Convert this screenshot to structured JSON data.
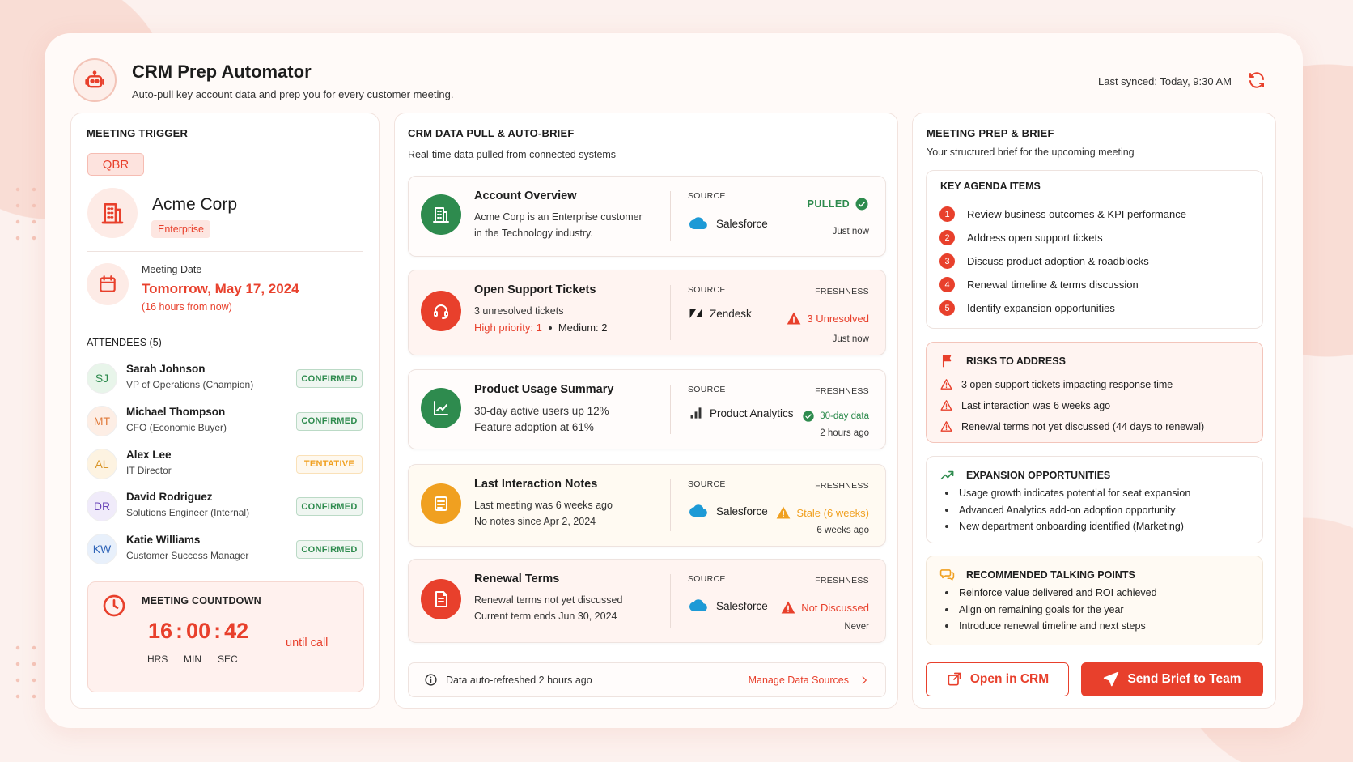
{
  "header": {
    "title": "CRM Prep Automator",
    "subtitle": "Auto-pull key account data and prep you for every customer meeting.",
    "last_synced": "Last synced: Today, 9:30 AM"
  },
  "trigger": {
    "heading": "MEETING TRIGGER",
    "badge": "QBR",
    "account": "Acme Corp",
    "tier": "Enterprise",
    "date_label": "Meeting Date",
    "date": "Tomorrow, May 17, 2024",
    "relative": "(16 hours from now)",
    "attendees_heading": "ATTENDEES (5)",
    "attendees": [
      {
        "initials": "SJ",
        "name": "Sarah Johnson",
        "role": "VP of Operations (Champion)",
        "status": "CONFIRMED"
      },
      {
        "initials": "MT",
        "name": "Michael Thompson",
        "role": "CFO (Economic Buyer)",
        "status": "CONFIRMED"
      },
      {
        "initials": "AL",
        "name": "Alex Lee",
        "role": "IT Director",
        "status": "TENTATIVE"
      },
      {
        "initials": "DR",
        "name": "David Rodriguez",
        "role": "Solutions Engineer (Internal)",
        "status": "CONFIRMED"
      },
      {
        "initials": "KW",
        "name": "Katie Williams",
        "role": "Customer Success Manager",
        "status": "CONFIRMED"
      }
    ],
    "countdown": {
      "heading": "MEETING COUNTDOWN",
      "hours": "16",
      "minutes": "00",
      "seconds": "42",
      "separator": ":",
      "suffix": "until call",
      "units": [
        "HRS",
        "MIN",
        "SEC"
      ]
    }
  },
  "crm": {
    "heading": "CRM DATA PULL & AUTO-BRIEF",
    "subtitle": "Real-time data pulled from connected systems",
    "cards": [
      {
        "title": "Account Overview",
        "lines": [
          "Acme Corp is an Enterprise customer",
          "in the Technology industry."
        ],
        "source_label": "SOURCE",
        "source": "Salesforce",
        "status": "PULLED",
        "time": "Just now"
      },
      {
        "title": "Open Support Tickets",
        "lines": [
          "3 unresolved tickets"
        ],
        "priority": {
          "high": "High priority: 1",
          "medium": "Medium: 2"
        },
        "source_label": "SOURCE",
        "source": "Zendesk",
        "status_label": "FRESHNESS",
        "status": "3 Unresolved",
        "time": "Just now"
      },
      {
        "title": "Product Usage Summary",
        "lines": [
          "30-day active users up 12%",
          "Feature adoption at 61%"
        ],
        "source_label": "SOURCE",
        "source": "Product Analytics",
        "status_label": "FRESHNESS",
        "status": "30-day data",
        "time": "2 hours ago"
      },
      {
        "title": "Last Interaction Notes",
        "lines": [
          "Last meeting was 6 weeks ago",
          "No notes since Apr 2, 2024"
        ],
        "source_label": "SOURCE",
        "source": "Salesforce",
        "status_label": "FRESHNESS",
        "status": "Stale (6 weeks)",
        "time": "6 weeks ago"
      },
      {
        "title": "Renewal Terms",
        "lines": [
          "Renewal terms not yet discussed",
          "Current term ends Jun 30, 2024"
        ],
        "source_label": "SOURCE",
        "source": "Salesforce",
        "status_label": "FRESHNESS",
        "status": "Not Discussed",
        "time": "Never"
      }
    ],
    "footer": "Data auto-refreshed 2 hours ago",
    "manage": "Manage Data Sources"
  },
  "brief": {
    "heading": "MEETING PREP & BRIEF",
    "subtitle": "Your structured brief for the upcoming meeting",
    "agenda": {
      "heading": "KEY AGENDA ITEMS",
      "items": [
        {
          "number": "1",
          "text": "Review business outcomes & KPI performance"
        },
        {
          "number": "2",
          "text": "Address open support tickets"
        },
        {
          "number": "3",
          "text": "Discuss product adoption & roadblocks"
        },
        {
          "number": "4",
          "text": "Renewal timeline & terms discussion"
        },
        {
          "number": "5",
          "text": "Identify expansion opportunities"
        }
      ]
    },
    "risks": {
      "heading": "RISKS TO ADDRESS",
      "items": [
        "3 open support tickets impacting response time",
        "Last interaction was 6 weeks ago",
        "Renewal terms not yet discussed (44 days to renewal)"
      ]
    },
    "expansion": {
      "heading": "EXPANSION OPPORTUNITIES",
      "items": [
        "Usage growth indicates potential for seat expansion",
        "Advanced Analytics add-on adoption opportunity",
        "New department onboarding identified (Marketing)"
      ]
    },
    "talking_points": {
      "heading": "RECOMMENDED TALKING POINTS",
      "items": [
        "Reinforce value delivered and ROI achieved",
        "Align on remaining goals for the year",
        "Introduce renewal timeline and next steps"
      ]
    },
    "open_crm": "Open in CRM",
    "send": "Send Brief to Team"
  }
}
